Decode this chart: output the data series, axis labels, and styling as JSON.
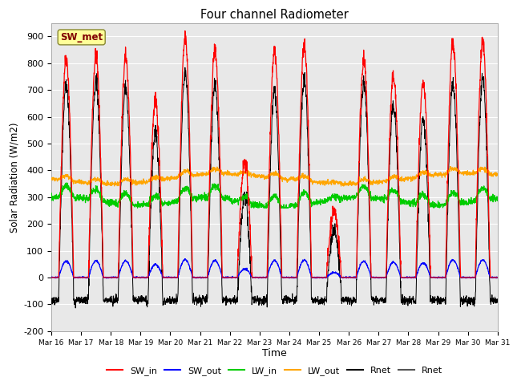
{
  "title": "Four channel Radiometer",
  "xlabel": "Time",
  "ylabel": "Solar Radiation (W/m2)",
  "ylim": [
    -200,
    950
  ],
  "yticks": [
    -200,
    -100,
    0,
    100,
    200,
    300,
    400,
    500,
    600,
    700,
    800,
    900
  ],
  "x_labels": [
    "Mar 16",
    "Mar 17",
    "Mar 18",
    "Mar 19",
    "Mar 20",
    "Mar 21",
    "Mar 22",
    "Mar 23",
    "Mar 24",
    "Mar 25",
    "Mar 26",
    "Mar 27",
    "Mar 28",
    "Mar 29",
    "Mar 30",
    "Mar 31"
  ],
  "legend_label": "SW_met",
  "legend_items": [
    "SW_in",
    "SW_out",
    "LW_in",
    "LW_out",
    "Rnet",
    "Rnet"
  ],
  "legend_colors": [
    "#ff0000",
    "#0000ff",
    "#00cc00",
    "#ffa500",
    "#000000",
    "#555555"
  ],
  "colors": {
    "SW_in": "#ff0000",
    "SW_out": "#0000ff",
    "LW_in": "#00cc00",
    "LW_out": "#ffa500",
    "Rnet": "#000000"
  },
  "bg_color": "#e8e8e8",
  "sw_met_box_color": "#ffff99",
  "sw_met_text_color": "#800000",
  "n_days": 15,
  "pts_per_day": 144,
  "peaks": [
    820,
    830,
    820,
    660,
    890,
    850,
    430,
    850,
    860,
    250,
    810,
    750,
    720,
    880,
    880
  ],
  "lw_in_base": 285,
  "lw_out_base": 370
}
